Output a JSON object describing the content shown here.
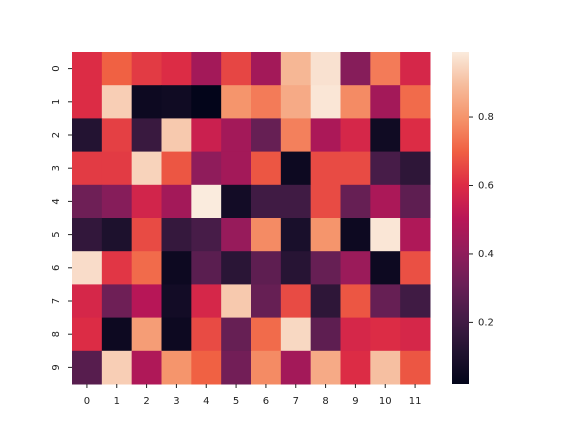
{
  "chart_data": {
    "type": "heatmap",
    "x_categories": [
      0,
      1,
      2,
      3,
      4,
      5,
      6,
      7,
      8,
      9,
      10,
      11
    ],
    "y_categories": [
      0,
      1,
      2,
      3,
      4,
      5,
      6,
      7,
      8,
      9
    ],
    "values": [
      [
        0.6,
        0.7,
        0.63,
        0.6,
        0.45,
        0.65,
        0.45,
        0.88,
        0.97,
        0.38,
        0.75,
        0.58
      ],
      [
        0.6,
        0.93,
        0.05,
        0.06,
        0.02,
        0.8,
        0.75,
        0.85,
        0.98,
        0.78,
        0.45,
        0.72
      ],
      [
        0.12,
        0.64,
        0.18,
        0.92,
        0.55,
        0.45,
        0.3,
        0.76,
        0.47,
        0.58,
        0.06,
        0.6
      ],
      [
        0.63,
        0.63,
        0.94,
        0.68,
        0.4,
        0.45,
        0.68,
        0.05,
        0.66,
        0.66,
        0.22,
        0.15
      ],
      [
        0.32,
        0.38,
        0.57,
        0.45,
        0.99,
        0.07,
        0.2,
        0.2,
        0.66,
        0.3,
        0.47,
        0.28
      ],
      [
        0.16,
        0.1,
        0.66,
        0.17,
        0.22,
        0.42,
        0.78,
        0.09,
        0.8,
        0.05,
        0.98,
        0.48
      ],
      [
        0.96,
        0.62,
        0.72,
        0.05,
        0.27,
        0.14,
        0.28,
        0.13,
        0.3,
        0.43,
        0.05,
        0.67
      ],
      [
        0.58,
        0.32,
        0.5,
        0.07,
        0.58,
        0.92,
        0.3,
        0.66,
        0.15,
        0.68,
        0.3,
        0.2
      ],
      [
        0.6,
        0.05,
        0.82,
        0.05,
        0.66,
        0.3,
        0.72,
        0.95,
        0.28,
        0.58,
        0.6,
        0.58
      ],
      [
        0.26,
        0.93,
        0.48,
        0.8,
        0.7,
        0.33,
        0.78,
        0.45,
        0.85,
        0.6,
        0.9,
        0.68
      ]
    ],
    "zlim": [
      0.02,
      0.99
    ],
    "colorbar_ticks": [
      0.2,
      0.4,
      0.6,
      0.8
    ],
    "colormap": [
      "#03051a",
      "#221331",
      "#451c47",
      "#6a1f56",
      "#921c5b",
      "#b91657",
      "#dd2c45",
      "#f06043",
      "#f5936a",
      "#f6bc9c",
      "#faebdd"
    ]
  }
}
